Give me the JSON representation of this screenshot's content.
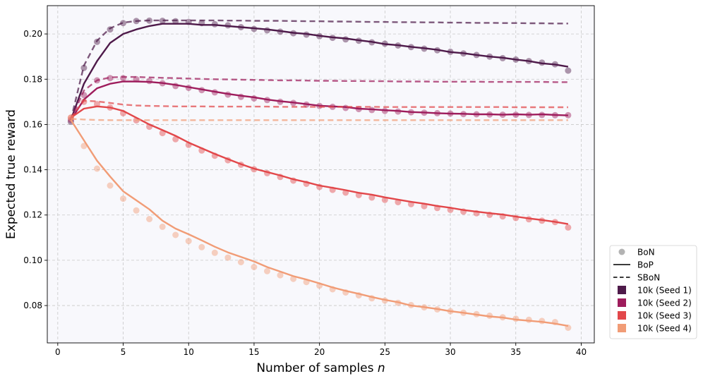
{
  "chart_data": {
    "type": "line",
    "xlabel": "Number of samples",
    "xlabel_var": "n",
    "ylabel": "Expected true reward",
    "xlim": [
      -0.8,
      41
    ],
    "ylim": [
      0.0635,
      0.2125
    ],
    "xticks": [
      0,
      5,
      10,
      15,
      20,
      25,
      30,
      35,
      40
    ],
    "yticks": [
      0.08,
      0.1,
      0.12,
      0.14,
      0.16,
      0.18,
      0.2
    ],
    "grid": true,
    "legend_position": "outside bottom-right",
    "legend": {
      "markers": [
        {
          "key": "bon",
          "label": "BoN"
        },
        {
          "key": "bop",
          "label": "BoP"
        },
        {
          "key": "sbon",
          "label": "SBoN"
        }
      ],
      "seeds": [
        {
          "label": "10k (Seed 1)",
          "color": "#4e1a4a"
        },
        {
          "label": "10k (Seed 2)",
          "color": "#9e1c5c"
        },
        {
          "label": "10k (Seed 3)",
          "color": "#e2474a"
        },
        {
          "label": "10k (Seed 4)",
          "color": "#f19c76"
        }
      ]
    },
    "series": [
      {
        "name": "10k (Seed 1)",
        "color": "#4e1a4a",
        "x": [
          1,
          2,
          3,
          4,
          5,
          6,
          7,
          8,
          9,
          10,
          11,
          12,
          13,
          14,
          15,
          16,
          17,
          18,
          19,
          20,
          21,
          22,
          23,
          24,
          25,
          26,
          27,
          28,
          29,
          30,
          31,
          32,
          33,
          34,
          35,
          36,
          37,
          38,
          39
        ],
        "bon": [
          0.1612,
          0.185,
          0.1965,
          0.202,
          0.2048,
          0.2057,
          0.2059,
          0.2058,
          0.2056,
          0.2053,
          0.2048,
          0.2043,
          0.2038,
          0.203,
          0.2022,
          0.2016,
          0.201,
          0.2003,
          0.1997,
          0.199,
          0.1983,
          0.1976,
          0.197,
          0.1963,
          0.1957,
          0.1949,
          0.1942,
          0.1935,
          0.1928,
          0.1921,
          0.1914,
          0.1907,
          0.19,
          0.1893,
          0.1887,
          0.188,
          0.1873,
          0.1866,
          0.1838
        ],
        "bop": [
          0.162,
          0.178,
          0.188,
          0.196,
          0.2,
          0.202,
          0.2035,
          0.2045,
          0.2045,
          0.2045,
          0.204,
          0.204,
          0.2035,
          0.203,
          0.2025,
          0.202,
          0.2013,
          0.2005,
          0.2,
          0.1992,
          0.1985,
          0.198,
          0.1972,
          0.1965,
          0.1955,
          0.195,
          0.1943,
          0.1937,
          0.193,
          0.192,
          0.1915,
          0.1907,
          0.19,
          0.1895,
          0.1887,
          0.188,
          0.187,
          0.1865,
          0.1855
        ],
        "sbon": [
          0.162,
          0.186,
          0.197,
          0.2025,
          0.205,
          0.2057,
          0.206,
          0.206,
          0.206,
          0.206,
          0.206,
          0.206,
          0.2059,
          0.2059,
          0.2058,
          0.2058,
          0.2058,
          0.2057,
          0.2056,
          0.2056,
          0.2055,
          0.2055,
          0.2054,
          0.2053,
          0.2053,
          0.2052,
          0.2052,
          0.2051,
          0.2051,
          0.205,
          0.205,
          0.2049,
          0.2049,
          0.2048,
          0.2048,
          0.2047,
          0.2047,
          0.2046,
          0.2046
        ]
      },
      {
        "name": "10k (Seed 2)",
        "color": "#9e1c5c",
        "x": [
          1,
          2,
          3,
          4,
          5,
          6,
          7,
          8,
          9,
          10,
          11,
          12,
          13,
          14,
          15,
          16,
          17,
          18,
          19,
          20,
          21,
          22,
          23,
          24,
          25,
          26,
          27,
          28,
          29,
          30,
          31,
          32,
          33,
          34,
          35,
          36,
          37,
          38,
          39
        ],
        "bon": [
          0.162,
          0.173,
          0.1795,
          0.1805,
          0.1805,
          0.18,
          0.1792,
          0.1782,
          0.177,
          0.1762,
          0.1752,
          0.1742,
          0.1732,
          0.1722,
          0.1715,
          0.1708,
          0.17,
          0.1695,
          0.1688,
          0.1682,
          0.1678,
          0.1673,
          0.1668,
          0.1664,
          0.166,
          0.1657,
          0.1654,
          0.1652,
          0.165,
          0.1648,
          0.1646,
          0.1645,
          0.1644,
          0.1643,
          0.1643,
          0.1642,
          0.1642,
          0.1641,
          0.1641
        ],
        "bop": [
          0.162,
          0.171,
          0.176,
          0.178,
          0.179,
          0.179,
          0.1788,
          0.1783,
          0.1775,
          0.1765,
          0.1755,
          0.1745,
          0.1735,
          0.1727,
          0.172,
          0.171,
          0.1703,
          0.1697,
          0.169,
          0.1683,
          0.168,
          0.1677,
          0.167,
          0.1667,
          0.1663,
          0.166,
          0.1655,
          0.1653,
          0.165,
          0.1648,
          0.1647,
          0.1645,
          0.1645,
          0.1643,
          0.1645,
          0.1643,
          0.1645,
          0.1642,
          0.164
        ],
        "sbon": [
          0.162,
          0.175,
          0.1795,
          0.1808,
          0.181,
          0.181,
          0.1808,
          0.1806,
          0.1805,
          0.1803,
          0.1801,
          0.18,
          0.1799,
          0.1798,
          0.1797,
          0.1796,
          0.1795,
          0.1795,
          0.1794,
          0.1793,
          0.1793,
          0.1792,
          0.1792,
          0.1791,
          0.1791,
          0.179,
          0.179,
          0.179,
          0.1789,
          0.1789,
          0.1789,
          0.1789,
          0.1788,
          0.1788,
          0.1788,
          0.1788,
          0.1788,
          0.1787,
          0.1787
        ]
      },
      {
        "name": "10k (Seed 3)",
        "color": "#e2474a",
        "x": [
          1,
          2,
          3,
          4,
          5,
          6,
          7,
          8,
          9,
          10,
          11,
          12,
          13,
          14,
          15,
          16,
          17,
          18,
          19,
          20,
          21,
          22,
          23,
          24,
          25,
          26,
          27,
          28,
          29,
          30,
          31,
          32,
          33,
          34,
          35,
          36,
          37,
          38,
          39
        ],
        "bon": [
          0.163,
          0.17,
          0.169,
          0.1675,
          0.165,
          0.1618,
          0.159,
          0.1562,
          0.1535,
          0.151,
          0.1485,
          0.1462,
          0.1442,
          0.1422,
          0.1402,
          0.1385,
          0.1368,
          0.1352,
          0.1338,
          0.1324,
          0.1311,
          0.1299,
          0.1288,
          0.1277,
          0.1267,
          0.1257,
          0.1248,
          0.1239,
          0.1231,
          0.1223,
          0.1215,
          0.1208,
          0.1201,
          0.1194,
          0.1187,
          0.1181,
          0.1175,
          0.1169,
          0.1145
        ],
        "bop": [
          0.163,
          0.167,
          0.168,
          0.1675,
          0.166,
          0.163,
          0.16,
          0.1575,
          0.155,
          0.152,
          0.1495,
          0.147,
          0.1447,
          0.1425,
          0.1405,
          0.139,
          0.1375,
          0.1358,
          0.1345,
          0.133,
          0.132,
          0.131,
          0.1298,
          0.129,
          0.1278,
          0.1268,
          0.1258,
          0.125,
          0.124,
          0.1232,
          0.1222,
          0.1215,
          0.1208,
          0.1202,
          0.1193,
          0.1185,
          0.1178,
          0.117,
          0.116
        ],
        "sbon": [
          0.163,
          0.1705,
          0.1702,
          0.1695,
          0.1688,
          0.1684,
          0.1682,
          0.1681,
          0.168,
          0.168,
          0.168,
          0.1679,
          0.1679,
          0.1679,
          0.1679,
          0.1679,
          0.1678,
          0.1678,
          0.1678,
          0.1678,
          0.1678,
          0.1678,
          0.1678,
          0.1678,
          0.1677,
          0.1677,
          0.1677,
          0.1677,
          0.1677,
          0.1677,
          0.1677,
          0.1677,
          0.1677,
          0.1677,
          0.1676,
          0.1676,
          0.1676,
          0.1676,
          0.1676
        ]
      },
      {
        "name": "10k (Seed 4)",
        "color": "#f19c76",
        "x": [
          1,
          2,
          3,
          4,
          5,
          6,
          7,
          8,
          9,
          10,
          11,
          12,
          13,
          14,
          15,
          16,
          17,
          18,
          19,
          20,
          21,
          22,
          23,
          24,
          25,
          26,
          27,
          28,
          29,
          30,
          31,
          32,
          33,
          34,
          35,
          36,
          37,
          38,
          39
        ],
        "bon": [
          0.163,
          0.1505,
          0.1405,
          0.133,
          0.1272,
          0.122,
          0.1182,
          0.1148,
          0.1112,
          0.1085,
          0.1058,
          0.1033,
          0.1012,
          0.0992,
          0.097,
          0.0952,
          0.0934,
          0.0918,
          0.0904,
          0.0888,
          0.0872,
          0.0858,
          0.0845,
          0.0832,
          0.0822,
          0.0812,
          0.0802,
          0.0792,
          0.0783,
          0.0775,
          0.0768,
          0.0762,
          0.0755,
          0.0748,
          0.0742,
          0.0737,
          0.0732,
          0.0727,
          0.0702
        ],
        "bop": [
          0.162,
          0.153,
          0.144,
          0.137,
          0.1305,
          0.1265,
          0.1225,
          0.1175,
          0.114,
          0.1115,
          0.1088,
          0.106,
          0.1035,
          0.1015,
          0.0995,
          0.097,
          0.095,
          0.093,
          0.0915,
          0.0898,
          0.088,
          0.0865,
          0.0852,
          0.0838,
          0.0825,
          0.0815,
          0.08,
          0.0793,
          0.0785,
          0.0775,
          0.0768,
          0.076,
          0.0752,
          0.0747,
          0.0738,
          0.0733,
          0.0728,
          0.072,
          0.071
        ],
        "sbon": [
          0.1625,
          0.1622,
          0.162,
          0.1619,
          0.1619,
          0.1619,
          0.1619,
          0.1619,
          0.1619,
          0.1619,
          0.1619,
          0.1619,
          0.1619,
          0.1619,
          0.1619,
          0.1619,
          0.1619,
          0.1619,
          0.1619,
          0.1619,
          0.1619,
          0.1619,
          0.1619,
          0.1619,
          0.1619,
          0.1619,
          0.1619,
          0.1619,
          0.1619,
          0.1619,
          0.1619,
          0.1619,
          0.1619,
          0.1619,
          0.1619,
          0.1619,
          0.1619,
          0.1619,
          0.1619
        ]
      }
    ]
  }
}
